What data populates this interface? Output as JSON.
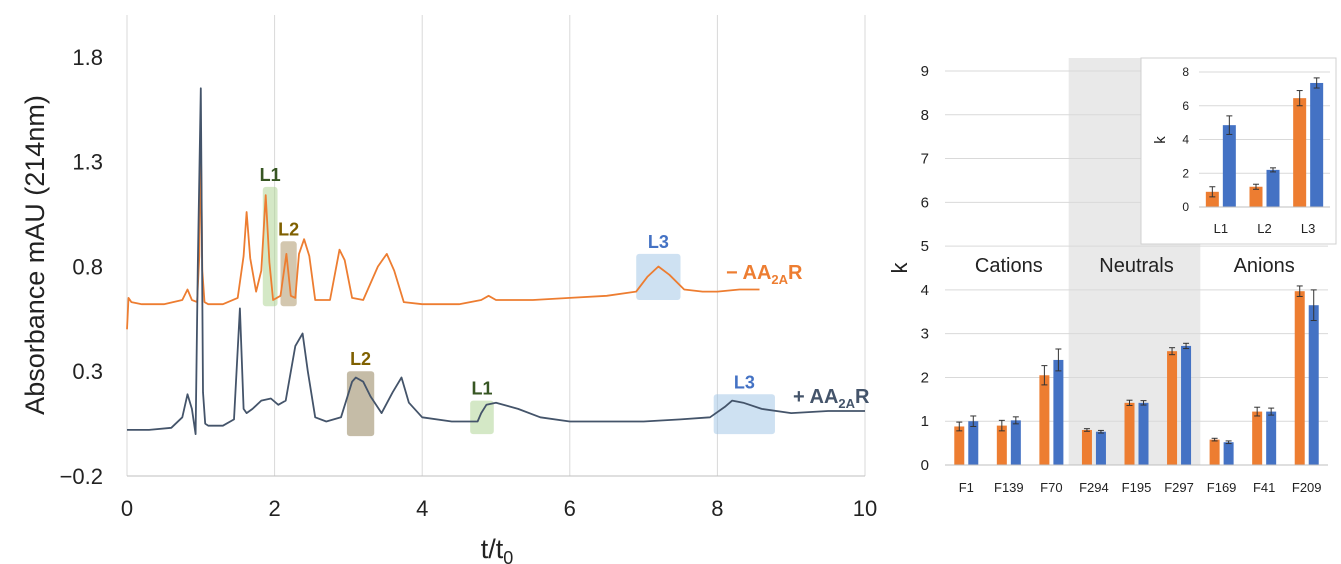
{
  "chart_data": [
    {
      "type": "line",
      "xlabel": "t/t",
      "xlabel_sub": "0",
      "ylabel": "Absorbance mAU (214nm)",
      "xlim": [
        0,
        10
      ],
      "ylim": [
        -0.2,
        2.0
      ],
      "x_ticks": [
        "0",
        "2",
        "4",
        "6",
        "8",
        "10"
      ],
      "y_ticks": [
        "−0.2",
        "0.3",
        "0.8",
        "1.3",
        "1.8"
      ],
      "grid": "vertical",
      "series": [
        {
          "name": "− AA2AR",
          "label_main": "− AA",
          "label_sub": "2A",
          "label_end": "R",
          "color": "#ED7D31",
          "x": [
            0,
            0.02,
            0.06,
            0.2,
            0.5,
            0.75,
            0.82,
            0.88,
            0.95,
            0.98,
            1.0,
            1.02,
            1.05,
            1.1,
            1.3,
            1.5,
            1.58,
            1.62,
            1.67,
            1.75,
            1.82,
            1.88,
            1.93,
            1.98,
            2.08,
            2.16,
            2.22,
            2.28,
            2.33,
            2.4,
            2.47,
            2.55,
            2.75,
            2.88,
            2.95,
            3.05,
            3.2,
            3.4,
            3.52,
            3.62,
            3.75,
            4.0,
            4.5,
            4.8,
            4.9,
            5.0,
            5.5,
            6.0,
            6.5,
            6.9,
            7.05,
            7.2,
            7.35,
            7.55,
            7.8,
            8.0,
            8.3,
            8.57
          ],
          "y": [
            0.5,
            0.65,
            0.63,
            0.62,
            0.62,
            0.64,
            0.69,
            0.64,
            0.63,
            0.85,
            1.42,
            0.78,
            0.63,
            0.62,
            0.62,
            0.65,
            0.85,
            1.06,
            0.84,
            0.68,
            0.78,
            1.14,
            0.82,
            0.64,
            0.66,
            0.86,
            0.66,
            0.65,
            0.86,
            0.93,
            0.85,
            0.64,
            0.64,
            0.88,
            0.83,
            0.65,
            0.64,
            0.8,
            0.86,
            0.78,
            0.63,
            0.62,
            0.62,
            0.64,
            0.66,
            0.64,
            0.64,
            0.65,
            0.66,
            0.68,
            0.75,
            0.8,
            0.76,
            0.69,
            0.68,
            0.68,
            0.69,
            0.69
          ]
        },
        {
          "name": "+ AA2AR",
          "label_main": "+ AA",
          "label_sub": "2A",
          "label_end": "R",
          "color": "#44546A",
          "x": [
            0,
            0.3,
            0.6,
            0.75,
            0.82,
            0.88,
            0.93,
            0.96,
            0.99,
            1.0,
            1.01,
            1.03,
            1.06,
            1.1,
            1.3,
            1.45,
            1.53,
            1.58,
            1.62,
            1.7,
            1.82,
            1.95,
            2.05,
            2.15,
            2.28,
            2.38,
            2.45,
            2.55,
            2.7,
            2.9,
            3.05,
            3.1,
            3.2,
            3.3,
            3.45,
            3.6,
            3.72,
            3.82,
            4.0,
            4.4,
            4.75,
            4.8,
            4.87,
            5.0,
            5.3,
            5.6,
            6.0,
            6.5,
            7.0,
            7.5,
            7.9,
            8.1,
            8.2,
            8.35,
            8.6,
            9.0,
            9.5,
            10.0
          ],
          "y": [
            0.02,
            0.02,
            0.03,
            0.08,
            0.19,
            0.12,
            0.0,
            0.8,
            1.45,
            1.65,
            1.2,
            0.2,
            0.05,
            0.04,
            0.04,
            0.07,
            0.6,
            0.12,
            0.1,
            0.12,
            0.16,
            0.17,
            0.14,
            0.16,
            0.42,
            0.48,
            0.3,
            0.08,
            0.06,
            0.08,
            0.25,
            0.27,
            0.25,
            0.18,
            0.1,
            0.2,
            0.27,
            0.15,
            0.08,
            0.06,
            0.06,
            0.1,
            0.14,
            0.15,
            0.12,
            0.08,
            0.06,
            0.06,
            0.06,
            0.07,
            0.08,
            0.13,
            0.16,
            0.15,
            0.12,
            0.1,
            0.11,
            0.11
          ]
        }
      ],
      "highlights": [
        {
          "label": "L1",
          "series": "− AA2AR",
          "x0": 1.84,
          "x1": 2.04,
          "y0": 0.61,
          "y1": 1.18,
          "color": "#A9D18E",
          "label_color": "#375623"
        },
        {
          "label": "L2",
          "series": "− AA2AR",
          "x0": 2.08,
          "x1": 2.3,
          "y0": 0.61,
          "y1": 0.92,
          "color": "#A89060",
          "label_color": "#7F6000"
        },
        {
          "label": "L3",
          "series": "− AA2AR",
          "x0": 6.9,
          "x1": 7.5,
          "y0": 0.64,
          "y1": 0.86,
          "color": "#9DC3E6",
          "label_color": "#4472C4"
        },
        {
          "label": "L2",
          "series": "+ AA2AR",
          "x0": 2.98,
          "x1": 3.35,
          "y0": -0.01,
          "y1": 0.3,
          "color": "#8B7A50",
          "label_color": "#7F6000"
        },
        {
          "label": "L1",
          "series": "+ AA2AR",
          "x0": 4.65,
          "x1": 4.97,
          "y0": 0.0,
          "y1": 0.16,
          "color": "#A9D18E",
          "label_color": "#375623"
        },
        {
          "label": "L3",
          "series": "+ AA2AR",
          "x0": 7.95,
          "x1": 8.78,
          "y0": 0.0,
          "y1": 0.19,
          "color": "#9DC3E6",
          "label_color": "#4472C4"
        }
      ]
    },
    {
      "type": "bar",
      "ylabel": "k",
      "ylim": [
        0,
        9
      ],
      "y_ticks": [
        "0",
        "1",
        "2",
        "3",
        "4",
        "5",
        "6",
        "7",
        "8",
        "9"
      ],
      "categories": [
        "F1",
        "F139",
        "F70",
        "F294",
        "F195",
        "F297",
        "F169",
        "F41",
        "F209"
      ],
      "groups": [
        "Cations",
        "Neutrals",
        "Anions"
      ],
      "shaded_group": "Neutrals",
      "series": [
        {
          "color": "#ED7D31",
          "values": [
            0.88,
            0.9,
            2.05,
            0.8,
            1.42,
            2.6,
            0.58,
            1.22,
            3.97
          ],
          "errors": [
            0.1,
            0.12,
            0.22,
            0.03,
            0.06,
            0.08,
            0.03,
            0.1,
            0.12
          ]
        },
        {
          "color": "#4472C4",
          "values": [
            1.0,
            1.02,
            2.4,
            0.76,
            1.42,
            2.72,
            0.52,
            1.22,
            3.65
          ],
          "errors": [
            0.12,
            0.08,
            0.25,
            0.03,
            0.05,
            0.06,
            0.03,
            0.08,
            0.35
          ]
        }
      ]
    },
    {
      "type": "bar",
      "ylabel": "k",
      "ylim": [
        0,
        8
      ],
      "y_ticks": [
        "0",
        "2",
        "4",
        "6",
        "8"
      ],
      "categories": [
        "L1",
        "L2",
        "L3"
      ],
      "series": [
        {
          "color": "#ED7D31",
          "values": [
            0.9,
            1.2,
            6.45
          ],
          "errors": [
            0.3,
            0.15,
            0.45
          ]
        },
        {
          "color": "#4472C4",
          "values": [
            4.85,
            2.2,
            7.35
          ],
          "errors": [
            0.55,
            0.12,
            0.3
          ]
        }
      ]
    }
  ]
}
